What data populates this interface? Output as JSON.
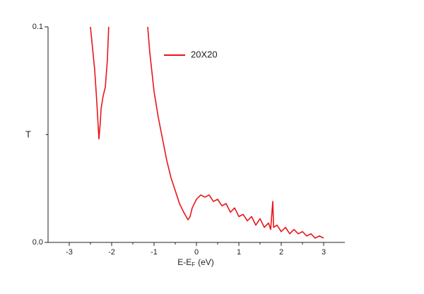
{
  "chart_data": {
    "type": "line",
    "ylabel": "T",
    "xlabel": {
      "main": "E-E",
      "sub": "F",
      "unit": "(eV)"
    },
    "x": [
      -2.5,
      -2.45,
      -2.4,
      -2.35,
      -2.3,
      -2.27,
      -2.25,
      -2.2,
      -2.15,
      -2.1,
      -2.07,
      -1.6,
      -1.15,
      -1.1,
      -1.0,
      -0.9,
      -0.8,
      -0.7,
      -0.6,
      -0.5,
      -0.4,
      -0.3,
      -0.2,
      -0.15,
      -0.1,
      0.0,
      0.1,
      0.2,
      0.3,
      0.4,
      0.5,
      0.6,
      0.7,
      0.8,
      0.9,
      1.0,
      1.1,
      1.2,
      1.3,
      1.4,
      1.5,
      1.6,
      1.7,
      1.75,
      1.8,
      1.82,
      1.9,
      2.0,
      2.1,
      2.2,
      2.3,
      2.4,
      2.5,
      2.6,
      2.7,
      2.8,
      2.9,
      3.0
    ],
    "series": [
      {
        "name": "20X20",
        "color": "#e8161b",
        "values": [
          0.1,
          0.09,
          0.08,
          0.065,
          0.048,
          0.055,
          0.062,
          0.068,
          0.072,
          0.085,
          0.1,
          null,
          0.1,
          0.088,
          0.07,
          0.058,
          0.048,
          0.038,
          0.03,
          0.024,
          0.018,
          0.014,
          0.0105,
          0.012,
          0.016,
          0.02,
          0.022,
          0.021,
          0.022,
          0.019,
          0.02,
          0.017,
          0.018,
          0.014,
          0.016,
          0.012,
          0.013,
          0.01,
          0.012,
          0.008,
          0.011,
          0.007,
          0.009,
          0.006,
          0.019,
          0.007,
          0.008,
          0.005,
          0.007,
          0.004,
          0.006,
          0.004,
          0.005,
          0.003,
          0.004,
          0.002,
          0.003,
          0.002
        ]
      }
    ],
    "xlim": [
      -3.5,
      3.5
    ],
    "xticks": [
      -3,
      -2,
      -1,
      0,
      1,
      2,
      3
    ],
    "xminorticks": [
      -2.5,
      -1.5,
      -0.5,
      0.5,
      1.5,
      2.5
    ],
    "ylim": [
      0,
      0.1
    ],
    "yticks": [
      {
        "value": 0,
        "label": "0.0"
      },
      0.1
    ],
    "yminorticks": [
      0.05
    ],
    "legend": "top"
  }
}
